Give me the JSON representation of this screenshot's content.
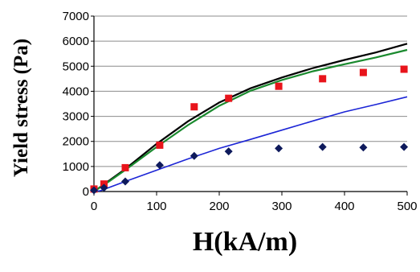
{
  "chart_data": {
    "type": "scatter",
    "title": "",
    "xlabel": "H(kA/m)",
    "ylabel": "Yield stress (Pa)",
    "xlim": [
      0,
      500
    ],
    "ylim": [
      0,
      7000
    ],
    "x_ticks": [
      "0",
      "100",
      "200",
      "300",
      "400",
      "500"
    ],
    "y_ticks": [
      "0",
      "1000",
      "2000",
      "3000",
      "4000",
      "5000",
      "6000",
      "7000"
    ],
    "grid": "horizontal",
    "legend": "none",
    "series": [
      {
        "kind": "markers",
        "marker": "square",
        "color": "#e8141b",
        "x": [
          0,
          16,
          50,
          105,
          160,
          215,
          295,
          365,
          430,
          495
        ],
        "y": [
          100,
          300,
          950,
          1850,
          3380,
          3720,
          4200,
          4500,
          4750,
          4880
        ]
      },
      {
        "kind": "markers",
        "marker": "diamond",
        "color": "#0e1a5c",
        "x": [
          0,
          16,
          50,
          105,
          160,
          215,
          295,
          365,
          430,
          495
        ],
        "y": [
          50,
          150,
          400,
          1050,
          1420,
          1600,
          1720,
          1780,
          1760,
          1780
        ]
      },
      {
        "kind": "line",
        "color": "#000000",
        "x": [
          0,
          25,
          50,
          100,
          150,
          200,
          250,
          300,
          350,
          400,
          450,
          500
        ],
        "y": [
          0,
          450,
          900,
          1900,
          2800,
          3550,
          4120,
          4550,
          4930,
          5250,
          5550,
          5900
        ]
      },
      {
        "kind": "line",
        "color": "#1a8a2e",
        "x": [
          0,
          25,
          50,
          100,
          150,
          200,
          250,
          300,
          350,
          400,
          450,
          500
        ],
        "y": [
          0,
          420,
          860,
          1780,
          2650,
          3420,
          4020,
          4450,
          4800,
          5080,
          5350,
          5650
        ]
      },
      {
        "kind": "line",
        "color": "#1c25d6",
        "x": [
          0,
          10,
          50,
          100,
          150,
          200,
          250,
          300,
          350,
          400,
          450,
          500
        ],
        "y": [
          0,
          30,
          400,
          850,
          1300,
          1720,
          2080,
          2450,
          2820,
          3180,
          3470,
          3780
        ]
      }
    ]
  }
}
